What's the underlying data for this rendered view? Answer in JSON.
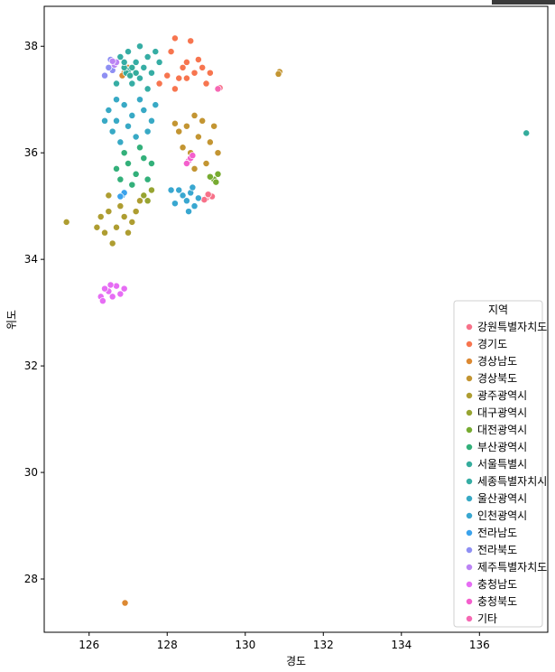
{
  "chart_data": {
    "type": "scatter",
    "xlabel": "경도",
    "ylabel": "위도",
    "xlim": [
      124.85,
      137.75
    ],
    "ylim": [
      27.0,
      38.75
    ],
    "xticks": [
      126,
      128,
      130,
      132,
      134,
      136
    ],
    "yticks": [
      28,
      30,
      32,
      34,
      36,
      38
    ],
    "grid": false,
    "legend_position": "lower-right",
    "legend_title": "지역",
    "series": [
      {
        "name": "강원특별자치도",
        "color": "#f77189",
        "points": [
          [
            129.0,
            35.15
          ],
          [
            129.1,
            35.2
          ],
          [
            129.15,
            35.18
          ],
          [
            128.95,
            35.12
          ],
          [
            129.05,
            35.22
          ],
          [
            129.35,
            37.22
          ]
        ]
      },
      {
        "name": "경기도",
        "color": "#f7754f",
        "points": [
          [
            128.2,
            38.15
          ],
          [
            128.6,
            38.1
          ],
          [
            128.1,
            37.9
          ],
          [
            128.4,
            37.6
          ],
          [
            128.8,
            37.75
          ],
          [
            129.0,
            37.3
          ],
          [
            128.3,
            37.4
          ],
          [
            128.0,
            37.45
          ],
          [
            128.7,
            37.5
          ],
          [
            128.5,
            37.7
          ],
          [
            129.1,
            37.5
          ],
          [
            127.8,
            37.3
          ],
          [
            128.2,
            37.2
          ],
          [
            128.9,
            37.6
          ],
          [
            128.5,
            37.4
          ]
        ]
      },
      {
        "name": "경상남도",
        "color": "#dc8932",
        "points": [
          [
            126.9,
            37.5
          ],
          [
            127.0,
            37.6
          ],
          [
            126.85,
            37.45
          ],
          [
            126.95,
            37.55
          ],
          [
            126.92,
            27.55
          ]
        ]
      },
      {
        "name": "경상북도",
        "color": "#c39532",
        "points": [
          [
            128.7,
            36.7
          ],
          [
            128.5,
            36.5
          ],
          [
            128.9,
            36.6
          ],
          [
            128.3,
            36.4
          ],
          [
            129.1,
            36.2
          ],
          [
            128.6,
            36.0
          ],
          [
            129.2,
            36.5
          ],
          [
            128.4,
            36.1
          ],
          [
            128.8,
            36.3
          ],
          [
            128.2,
            36.55
          ],
          [
            129.3,
            36.0
          ],
          [
            129.0,
            35.8
          ],
          [
            128.7,
            35.7
          ],
          [
            130.88,
            37.52
          ],
          [
            130.85,
            37.48
          ]
        ]
      },
      {
        "name": "광주광역시",
        "color": "#ae9d31",
        "points": [
          [
            126.3,
            34.8
          ],
          [
            126.5,
            34.9
          ],
          [
            126.7,
            34.6
          ],
          [
            126.9,
            34.8
          ],
          [
            127.1,
            34.7
          ],
          [
            127.2,
            34.9
          ],
          [
            126.4,
            34.5
          ],
          [
            126.6,
            34.3
          ],
          [
            126.8,
            35.0
          ],
          [
            127.3,
            35.1
          ],
          [
            126.5,
            35.2
          ],
          [
            126.2,
            34.6
          ],
          [
            127.0,
            34.5
          ],
          [
            125.42,
            34.7
          ]
        ]
      },
      {
        "name": "대구광역시",
        "color": "#97a431",
        "points": [
          [
            127.4,
            35.2
          ],
          [
            127.6,
            35.3
          ],
          [
            127.5,
            35.1
          ]
        ]
      },
      {
        "name": "대전광역시",
        "color": "#77ab31",
        "points": [
          [
            129.2,
            35.5
          ],
          [
            129.3,
            35.6
          ],
          [
            129.25,
            35.45
          ],
          [
            129.1,
            35.55
          ]
        ]
      },
      {
        "name": "부산광역시",
        "color": "#33b07a",
        "points": [
          [
            126.7,
            35.7
          ],
          [
            127.0,
            35.8
          ],
          [
            127.2,
            35.6
          ],
          [
            127.4,
            35.9
          ],
          [
            126.9,
            36.0
          ],
          [
            127.5,
            35.5
          ],
          [
            127.1,
            35.4
          ],
          [
            127.3,
            36.1
          ],
          [
            126.8,
            35.5
          ],
          [
            127.6,
            35.8
          ]
        ]
      },
      {
        "name": "서울특별시",
        "color": "#35ac9c",
        "points": [
          [
            127.0,
            37.55
          ],
          [
            126.95,
            37.5
          ],
          [
            127.1,
            37.6
          ],
          [
            127.05,
            37.45
          ],
          [
            126.9,
            37.6
          ],
          [
            127.2,
            37.5
          ],
          [
            137.2,
            36.37
          ]
        ]
      },
      {
        "name": "세종특별자치시",
        "color": "#36ada4",
        "points": [
          [
            126.8,
            37.8
          ],
          [
            127.0,
            37.9
          ],
          [
            127.3,
            38.0
          ],
          [
            127.5,
            37.8
          ],
          [
            127.2,
            37.7
          ],
          [
            127.7,
            37.9
          ],
          [
            127.4,
            37.6
          ],
          [
            126.9,
            37.7
          ],
          [
            127.6,
            37.5
          ],
          [
            127.1,
            37.3
          ],
          [
            127.8,
            37.7
          ],
          [
            127.3,
            37.4
          ],
          [
            126.7,
            37.3
          ],
          [
            127.5,
            37.2
          ]
        ]
      },
      {
        "name": "울산광역시",
        "color": "#38a9c5",
        "points": [
          [
            126.5,
            36.8
          ],
          [
            126.7,
            36.6
          ],
          [
            126.9,
            36.9
          ],
          [
            127.1,
            36.7
          ],
          [
            126.6,
            36.4
          ],
          [
            126.8,
            36.2
          ],
          [
            127.0,
            36.5
          ],
          [
            127.2,
            36.3
          ],
          [
            127.4,
            36.8
          ],
          [
            127.6,
            36.6
          ],
          [
            126.4,
            36.6
          ],
          [
            127.3,
            37.0
          ],
          [
            127.5,
            36.4
          ],
          [
            126.7,
            37.0
          ],
          [
            127.7,
            36.9
          ]
        ]
      },
      {
        "name": "인천광역시",
        "color": "#39a7d0",
        "points": [
          [
            128.3,
            35.3
          ],
          [
            128.5,
            35.1
          ],
          [
            128.6,
            35.25
          ],
          [
            128.7,
            35.0
          ],
          [
            128.4,
            35.2
          ],
          [
            128.2,
            35.05
          ],
          [
            128.55,
            34.9
          ],
          [
            128.8,
            35.15
          ],
          [
            128.1,
            35.3
          ],
          [
            128.65,
            35.35
          ]
        ]
      },
      {
        "name": "전라남도",
        "color": "#3ba3ec",
        "points": [
          [
            126.85,
            35.2
          ],
          [
            126.9,
            35.25
          ],
          [
            126.8,
            35.18
          ]
        ]
      },
      {
        "name": "전라북도",
        "color": "#8e8ff3",
        "points": [
          [
            126.4,
            37.45
          ],
          [
            126.55,
            37.75
          ],
          [
            126.6,
            37.55
          ],
          [
            126.5,
            37.6
          ]
        ]
      },
      {
        "name": "제주특별자치도",
        "color": "#bb83f4",
        "points": [
          [
            126.65,
            37.65
          ],
          [
            126.7,
            37.7
          ],
          [
            126.6,
            37.72
          ]
        ]
      },
      {
        "name": "충청남도",
        "color": "#e66df4",
        "points": [
          [
            126.3,
            33.3
          ],
          [
            126.5,
            33.4
          ],
          [
            126.7,
            33.5
          ],
          [
            126.9,
            33.45
          ],
          [
            126.6,
            33.3
          ],
          [
            126.4,
            33.45
          ],
          [
            126.8,
            33.35
          ],
          [
            126.55,
            33.52
          ],
          [
            126.35,
            33.22
          ]
        ]
      },
      {
        "name": "충청북도",
        "color": "#f45fcd",
        "points": [
          [
            128.55,
            35.85
          ],
          [
            128.6,
            35.9
          ],
          [
            128.5,
            35.8
          ],
          [
            128.65,
            35.95
          ]
        ]
      },
      {
        "name": "기타",
        "color": "#f668b3",
        "points": [
          [
            129.3,
            37.2
          ]
        ]
      }
    ]
  }
}
